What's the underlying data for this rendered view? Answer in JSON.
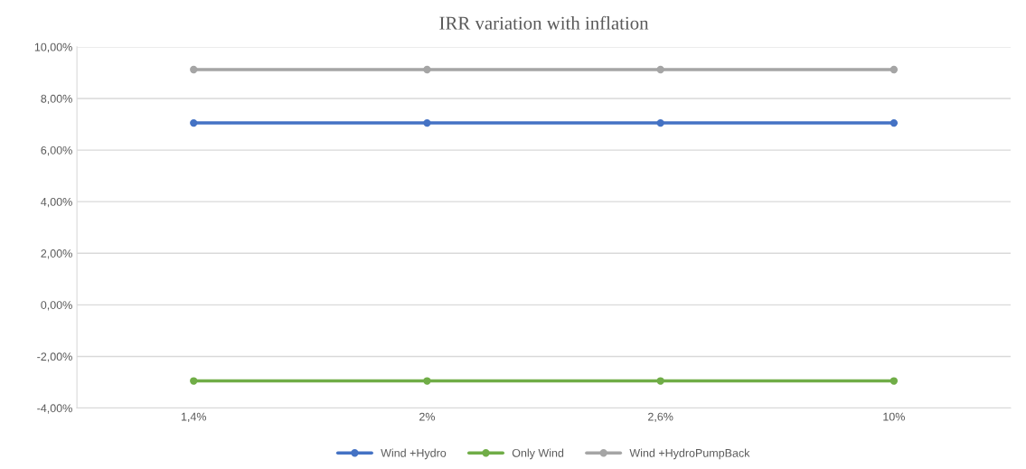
{
  "chart_data": {
    "type": "line",
    "title": "IRR variation with inflation",
    "categories": [
      "1,4%",
      "2%",
      "2,6%",
      "10%"
    ],
    "series": [
      {
        "name": "Wind +Hydro",
        "color": "#4472c4",
        "values": [
          7.05,
          7.05,
          7.05,
          7.05
        ]
      },
      {
        "name": "Only Wind",
        "color": "#70ad47",
        "values": [
          -2.95,
          -2.95,
          -2.95,
          -2.95
        ]
      },
      {
        "name": "Wind +HydroPumpBack",
        "color": "#a5a5a5",
        "values": [
          9.12,
          9.12,
          9.12,
          9.12
        ]
      }
    ],
    "ylim": [
      -4,
      10
    ],
    "yticks": [
      {
        "value": -4,
        "label": "-4,00%"
      },
      {
        "value": -2,
        "label": "-2,00%"
      },
      {
        "value": 0,
        "label": "0,00%"
      },
      {
        "value": 2,
        "label": "2,00%"
      },
      {
        "value": 4,
        "label": "4,00%"
      },
      {
        "value": 6,
        "label": "6,00%"
      },
      {
        "value": 8,
        "label": "8,00%"
      },
      {
        "value": 10,
        "label": "10,00%"
      }
    ],
    "grid": "y",
    "legend": "bottom",
    "marker": "circle",
    "line_style": "solid"
  }
}
